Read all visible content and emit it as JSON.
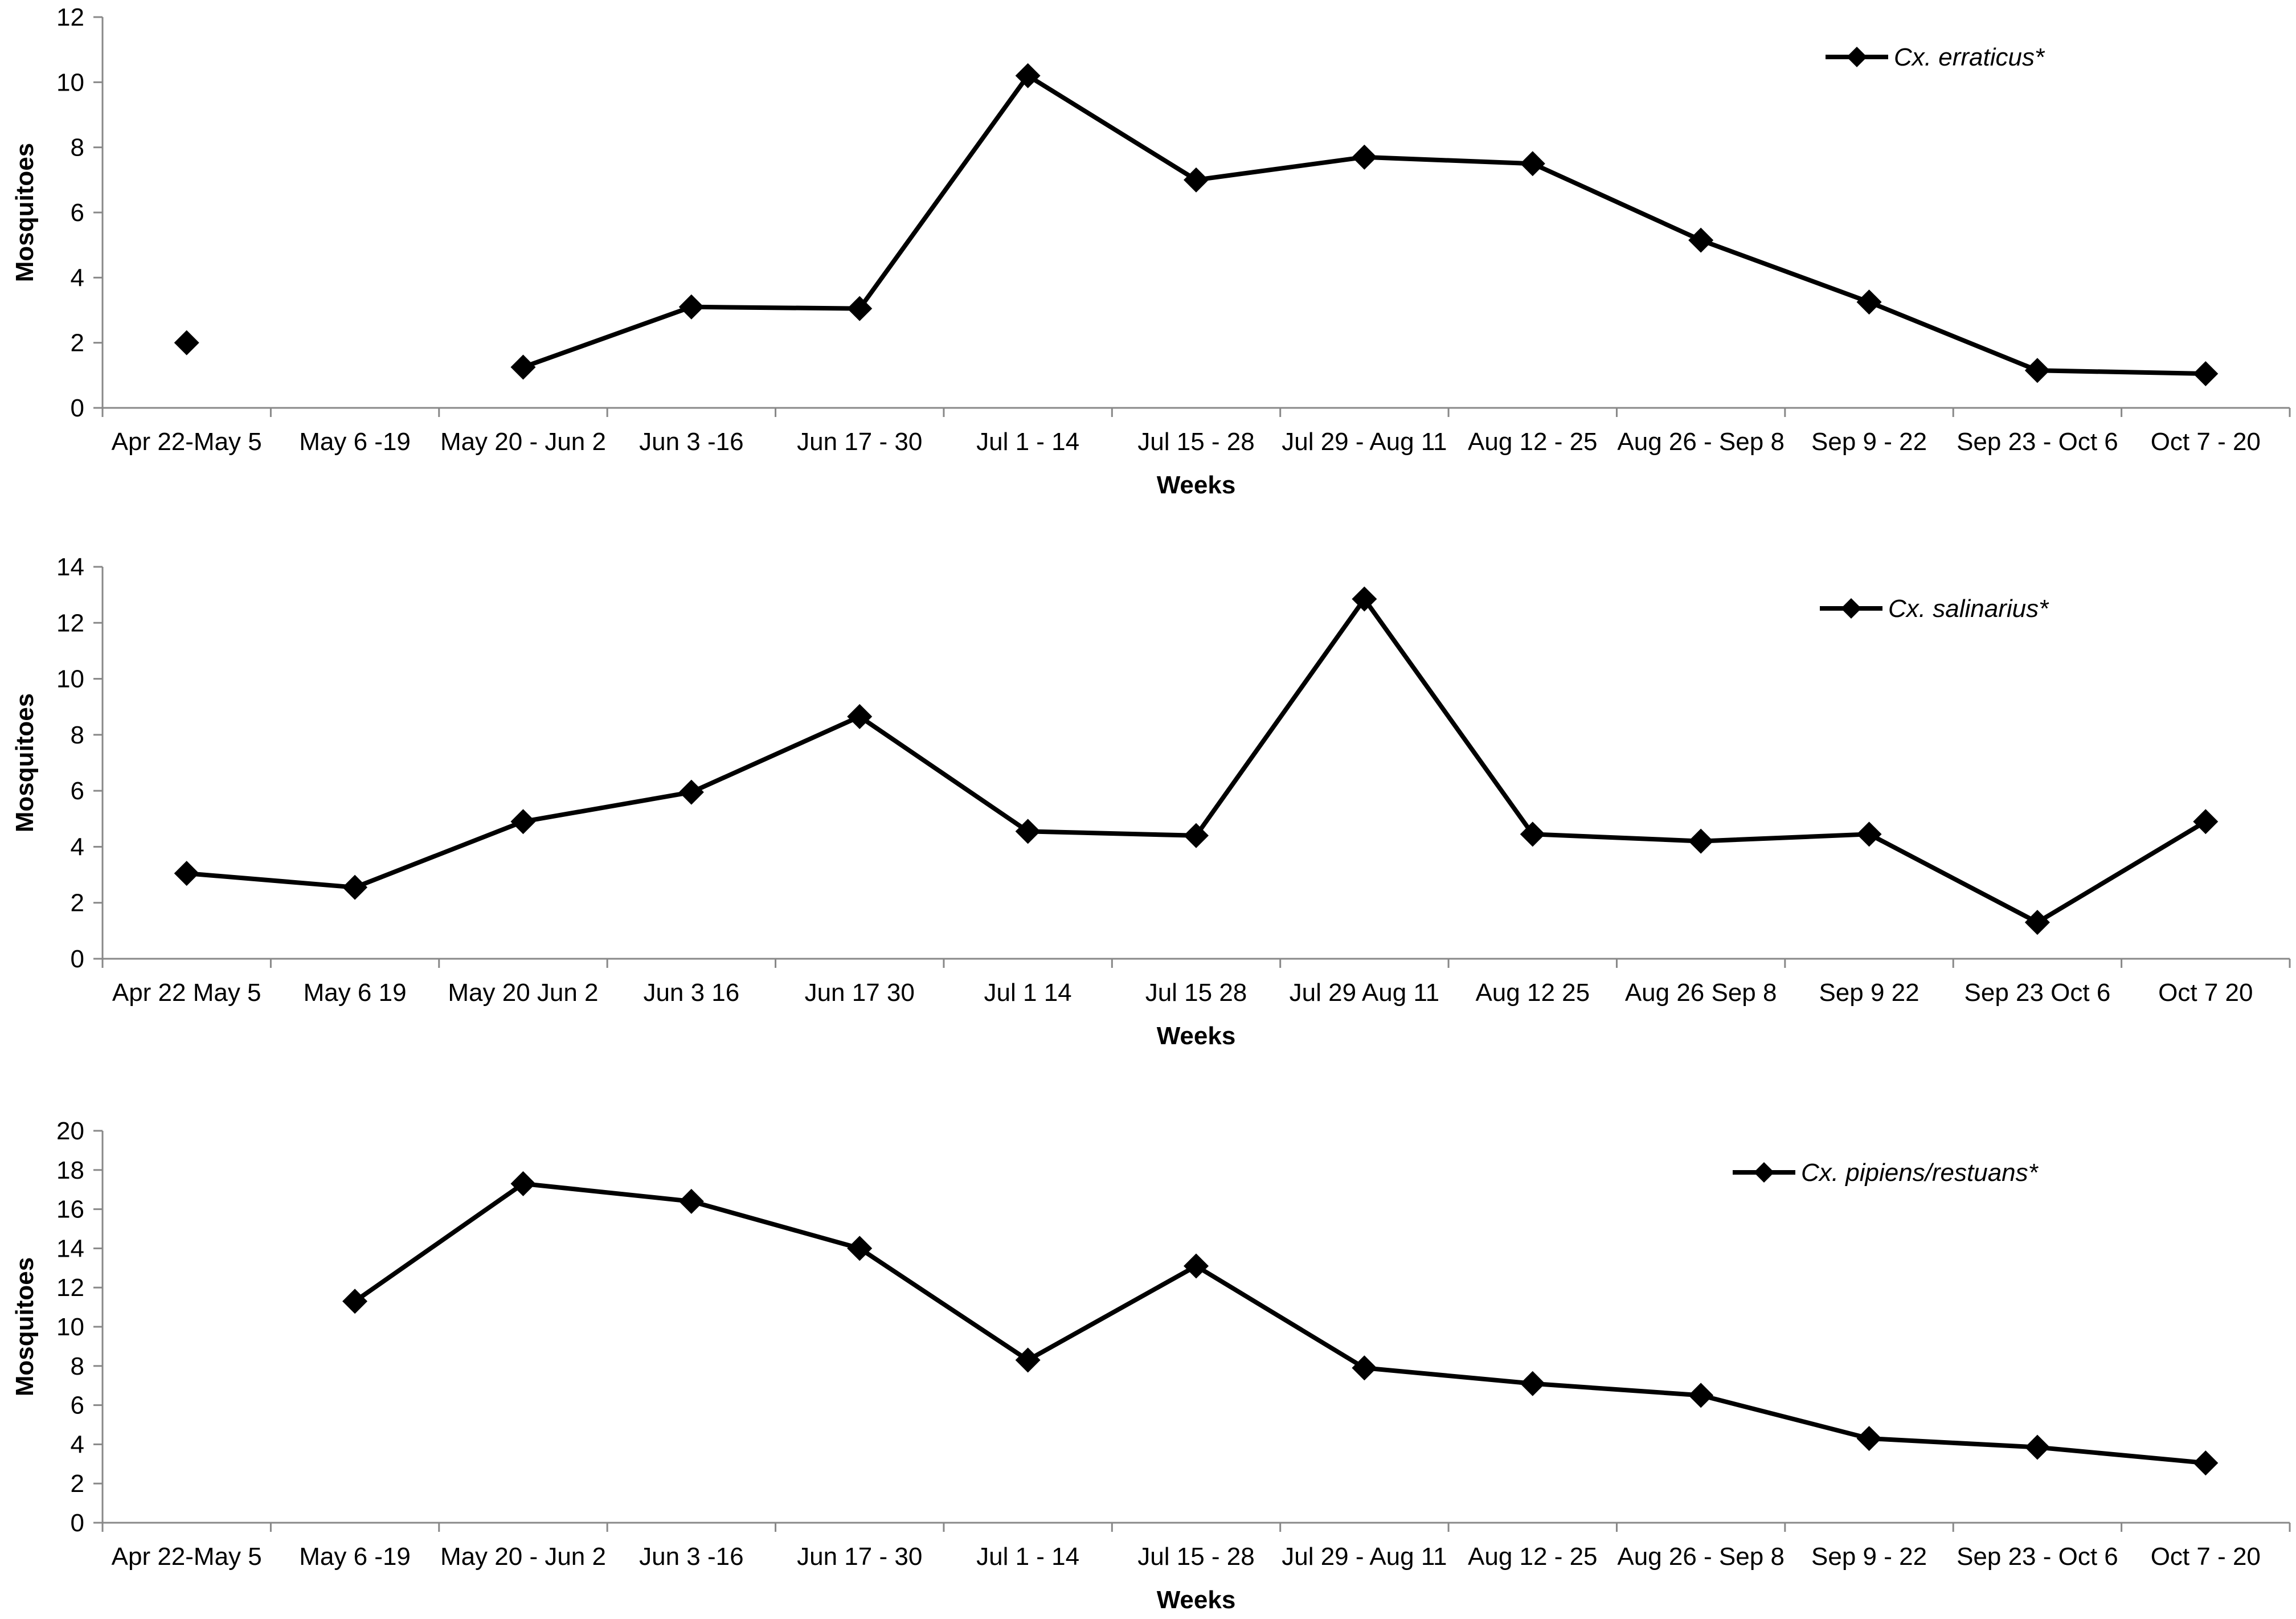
{
  "chart_data": [
    {
      "type": "line",
      "title": "",
      "xlabel": "Weeks",
      "ylabel": "Mosquitoes",
      "ylim": [
        0,
        12
      ],
      "yticks": [
        0,
        2,
        4,
        6,
        8,
        10,
        12
      ],
      "categories": [
        "Apr 22-May 5",
        "May 6 -19",
        "May 20 - Jun 2",
        "Jun 3 -16",
        "Jun 17 - 30",
        "Jul 1 - 14",
        "Jul 15 - 28",
        "Jul 29 - Aug 11",
        "Aug 12 - 25",
        "Aug 26 - Sep 8",
        "Sep 9 - 22",
        "Sep 23 - Oct 6",
        "Oct 7 - 20"
      ],
      "legend": "top-right",
      "grid": false,
      "series": [
        {
          "name": "Cx. erraticus*",
          "color": "#000000",
          "values": [
            2.0,
            null,
            1.25,
            3.1,
            3.05,
            10.2,
            7.0,
            7.7,
            7.5,
            5.15,
            3.25,
            1.15,
            1.05
          ]
        }
      ]
    },
    {
      "type": "line",
      "title": "",
      "xlabel": "Weeks",
      "ylabel": "Mosquitoes",
      "ylim": [
        0,
        14
      ],
      "yticks": [
        0,
        2,
        4,
        6,
        8,
        10,
        12,
        14
      ],
      "categories": [
        "Apr 22 May 5",
        "May 6 19",
        "May 20 Jun 2",
        "Jun 3 16",
        "Jun 17 30",
        "Jul 1 14",
        "Jul 15 28",
        "Jul 29 Aug 11",
        "Aug 12 25",
        "Aug 26 Sep 8",
        "Sep 9 22",
        "Sep 23 Oct 6",
        "Oct 7 20"
      ],
      "legend": "top-right",
      "grid": false,
      "series": [
        {
          "name": "Cx. salinarius*",
          "color": "#000000",
          "values": [
            3.05,
            2.55,
            4.9,
            5.95,
            8.65,
            4.55,
            4.4,
            12.85,
            4.45,
            4.2,
            4.45,
            1.3,
            4.9
          ]
        }
      ]
    },
    {
      "type": "line",
      "title": "",
      "xlabel": "Weeks",
      "ylabel": "Mosquitoes",
      "ylim": [
        0,
        20
      ],
      "yticks": [
        0,
        2,
        4,
        6,
        8,
        10,
        12,
        14,
        16,
        18,
        20
      ],
      "categories": [
        "Apr 22-May 5",
        "May 6 -19",
        "May 20 - Jun 2",
        "Jun 3 -16",
        "Jun 17 - 30",
        "Jul 1 - 14",
        "Jul 15 - 28",
        "Jul 29 - Aug 11",
        "Aug 12 - 25",
        "Aug 26 - Sep 8",
        "Sep 9 - 22",
        "Sep 23 - Oct 6",
        "Oct 7 - 20"
      ],
      "legend": "top-right",
      "grid": false,
      "series": [
        {
          "name": "Cx. pipiens/restuans*",
          "color": "#000000",
          "values": [
            null,
            11.3,
            17.3,
            16.4,
            14.0,
            8.3,
            13.1,
            7.9,
            7.1,
            6.5,
            4.3,
            3.85,
            3.05
          ]
        }
      ]
    }
  ]
}
